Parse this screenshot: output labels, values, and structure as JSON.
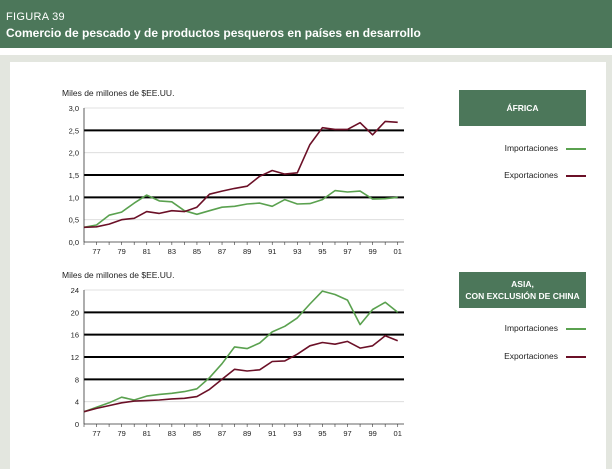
{
  "header": {
    "figure_label": "FIGURA 39",
    "title": "Comercio de pescado y de productos pesqueros en países en desarrollo"
  },
  "colors": {
    "header_bg": "#4c775a",
    "imports": "#5aa14f",
    "exports": "#6b1027"
  },
  "legend": {
    "imports_label": "Importaciones",
    "exports_label": "Exportaciones"
  },
  "chart_data": [
    {
      "type": "line",
      "region_title": "ÁFRICA",
      "ylabel": "Miles de millones de $EE.UU.",
      "x": [
        1976,
        1977,
        1978,
        1979,
        1980,
        1981,
        1982,
        1983,
        1984,
        1985,
        1986,
        1987,
        1988,
        1989,
        1990,
        1991,
        1992,
        1993,
        1994,
        1995,
        1996,
        1997,
        1998,
        1999,
        2000,
        2001
      ],
      "xlim": [
        1976,
        2001.5
      ],
      "xticks": [
        1977,
        1979,
        1981,
        1983,
        1985,
        1987,
        1989,
        1991,
        1993,
        1995,
        1997,
        1999,
        2001
      ],
      "xtick_labels": [
        "77",
        "79",
        "81",
        "83",
        "85",
        "87",
        "89",
        "91",
        "93",
        "95",
        "97",
        "99",
        "01"
      ],
      "ylim": [
        0,
        3.0
      ],
      "yticks": [
        0,
        0.5,
        1.0,
        1.5,
        2.0,
        2.5,
        3.0
      ],
      "ytick_labels": [
        "0,0",
        "0,5",
        "1,0",
        "1,5",
        "2,0",
        "2,5",
        "3,0"
      ],
      "bold_gridlines": [
        1.0,
        1.5,
        2.5
      ],
      "series": [
        {
          "name": "Importaciones",
          "values": [
            0.33,
            0.38,
            0.6,
            0.67,
            0.87,
            1.05,
            0.92,
            0.9,
            0.7,
            0.62,
            0.7,
            0.78,
            0.8,
            0.85,
            0.87,
            0.8,
            0.95,
            0.85,
            0.86,
            0.95,
            1.15,
            1.12,
            1.14,
            0.96,
            0.97,
            1.0
          ]
        },
        {
          "name": "Exportaciones",
          "values": [
            0.33,
            0.34,
            0.4,
            0.5,
            0.53,
            0.68,
            0.64,
            0.7,
            0.68,
            0.78,
            1.07,
            1.14,
            1.2,
            1.25,
            1.47,
            1.6,
            1.52,
            1.55,
            2.18,
            2.56,
            2.52,
            2.52,
            2.67,
            2.4,
            2.7,
            2.68
          ]
        }
      ]
    },
    {
      "type": "line",
      "region_title": "ASIA,\nCON EXCLUSIÓN DE CHINA",
      "ylabel": "Miles de millones de $EE.UU.",
      "x": [
        1976,
        1977,
        1978,
        1979,
        1980,
        1981,
        1982,
        1983,
        1984,
        1985,
        1986,
        1987,
        1988,
        1989,
        1990,
        1991,
        1992,
        1993,
        1994,
        1995,
        1996,
        1997,
        1998,
        1999,
        2000,
        2001
      ],
      "xlim": [
        1976,
        2001.5
      ],
      "xticks": [
        1977,
        1979,
        1981,
        1983,
        1985,
        1987,
        1989,
        1991,
        1993,
        1995,
        1997,
        1999,
        2001
      ],
      "xtick_labels": [
        "77",
        "79",
        "81",
        "83",
        "85",
        "87",
        "89",
        "91",
        "93",
        "95",
        "97",
        "99",
        "01"
      ],
      "ylim": [
        0,
        24
      ],
      "yticks": [
        0,
        4,
        8,
        12,
        16,
        20,
        24
      ],
      "ytick_labels": [
        "0",
        "4",
        "8",
        "12",
        "16",
        "20",
        "24"
      ],
      "bold_gridlines": [
        8,
        12,
        16,
        20
      ],
      "series": [
        {
          "name": "Importaciones",
          "values": [
            2.2,
            3.0,
            3.8,
            4.8,
            4.3,
            5.0,
            5.3,
            5.5,
            5.8,
            6.3,
            8.3,
            10.8,
            13.8,
            13.5,
            14.5,
            16.5,
            17.5,
            19.0,
            21.5,
            23.8,
            23.2,
            22.2,
            17.8,
            20.5,
            21.8,
            20.0
          ]
        },
        {
          "name": "Exportaciones",
          "values": [
            2.2,
            2.8,
            3.3,
            3.8,
            4.1,
            4.2,
            4.3,
            4.5,
            4.6,
            4.9,
            6.2,
            8.0,
            9.8,
            9.5,
            9.7,
            11.2,
            11.3,
            12.5,
            14.0,
            14.6,
            14.3,
            14.8,
            13.6,
            14.0,
            15.8,
            14.9
          ]
        }
      ]
    }
  ]
}
